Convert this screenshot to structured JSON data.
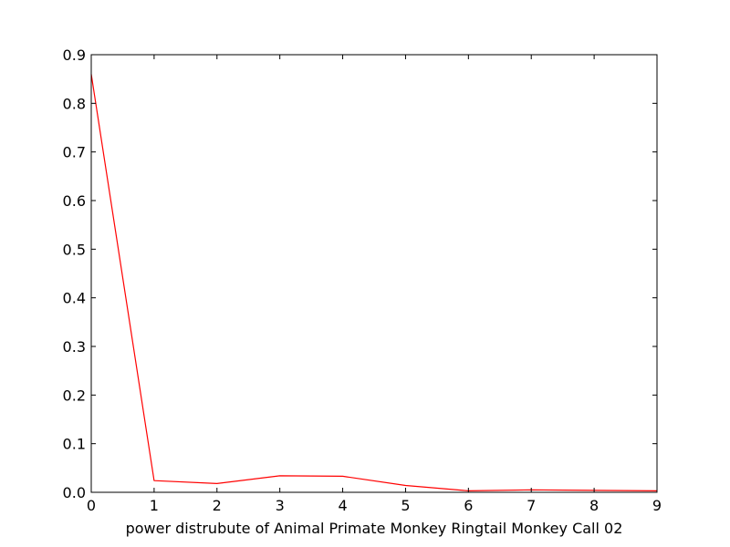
{
  "chart_data": {
    "type": "line",
    "title": "",
    "xlabel": "power distrubute of Animal Primate Monkey Ringtail Monkey Call 02",
    "ylabel": "",
    "xlim": [
      0,
      9
    ],
    "ylim": [
      0,
      0.9
    ],
    "xticks": [
      0,
      1,
      2,
      3,
      4,
      5,
      6,
      7,
      8,
      9
    ],
    "xtick_labels": [
      "0",
      "1",
      "2",
      "3",
      "4",
      "5",
      "6",
      "7",
      "8",
      "9"
    ],
    "yticks": [
      0,
      0.1,
      0.2,
      0.3,
      0.4,
      0.5,
      0.6,
      0.7,
      0.8,
      0.9
    ],
    "ytick_labels": [
      "0.0",
      "0.1",
      "0.2",
      "0.3",
      "0.4",
      "0.5",
      "0.6",
      "0.7",
      "0.8",
      "0.9"
    ],
    "grid": false,
    "legend": "none",
    "series": [
      {
        "color": "#ff0000",
        "x": [
          0,
          1,
          2,
          3,
          4,
          5,
          6,
          7,
          8,
          9
        ],
        "values": [
          0.86,
          0.024,
          0.018,
          0.034,
          0.033,
          0.014,
          0.003,
          0.005,
          0.004,
          0.003
        ]
      }
    ]
  }
}
